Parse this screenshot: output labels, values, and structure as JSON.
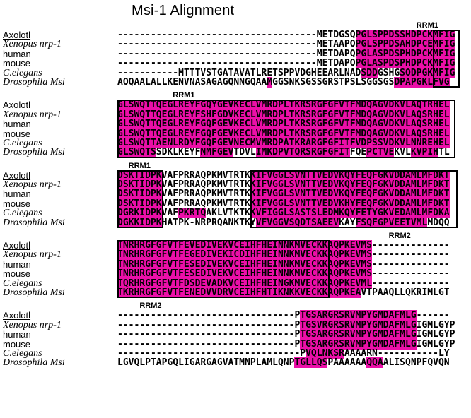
{
  "title": "Msi-1 Alignment",
  "colors": {
    "highlight": "#EC0FA8",
    "box_border": "#000000"
  },
  "layout_labels": {
    "rrm1": "RRM1",
    "rrm2": "RRM2"
  },
  "blocks": [
    {
      "top_labels": [
        {
          "text": "RRM1",
          "col": 54
        }
      ],
      "boxes": [
        {
          "col_start": 57,
          "col_end": 61.8,
          "row_start": 0,
          "row_end": 6
        }
      ],
      "rows": [
        {
          "species": "Axolotl",
          "style": "sans underline",
          "seq": "------------------------------------METDGSQPGLSPPDSSHDPCKMFIG",
          "hl": [
            [
              43,
              61
            ]
          ]
        },
        {
          "species": "Xenopus nrp-1",
          "style": "serif-italic",
          "seq": "------------------------------------METAAPQPGLSPPDSAHDPCEMFIG",
          "hl": [
            [
              43,
              61
            ]
          ]
        },
        {
          "species": "human",
          "style": "sans",
          "seq": "------------------------------------METDAPQPGLASPDSPHDPCKMFIG",
          "hl": [
            [
              43,
              61
            ]
          ]
        },
        {
          "species": "mouse",
          "style": "sans",
          "seq": "------------------------------------METDAPQPGLASPDSPHDPCKMFIG",
          "hl": [
            [
              43,
              61
            ]
          ]
        },
        {
          "species": "C.elegans",
          "style": "serif-italic",
          "seq": "-----------MTTTVSTGATAVATLRETSPPVDGHEEARLNADSDDGSHGSQDPGKMFIG",
          "hl": [
            [
              44,
              47
            ],
            [
              51,
              61
            ]
          ]
        },
        {
          "species": "Drosophila Msi",
          "style": "serif-italic",
          "seq": "AQQAALALLKENVNASAGAGQNNGQAAMGGSNKSGSSGRSTPSLSGGSGSDPAPGKLFVG",
          "hl": [
            [
              27,
              28
            ],
            [
              50,
              60
            ]
          ]
        }
      ]
    },
    {
      "top_labels": [
        {
          "text": "RRM1",
          "col": 10
        }
      ],
      "boxes": [
        {
          "col_start": 0,
          "col_end": 61,
          "row_start": 0,
          "row_end": 6
        }
      ],
      "rows": [
        {
          "species": "Axolotl",
          "style": "sans underline",
          "seq": "GLSWQTTQEGLREYFGQYGEVKECLVMRDPLTKRSRGFGFVTFMDQAGVDKVLAQTRHEL",
          "hl": [
            [
              0,
              60
            ]
          ]
        },
        {
          "species": "Xenopus nrp-1",
          "style": "serif-italic",
          "seq": "GLSWQTTQEGLREYFSHFGDVKECLVMRDPLTKRSRGFGFVTFMDQAGVDKVLAQSRHEL",
          "hl": [
            [
              0,
              60
            ]
          ]
        },
        {
          "species": "human",
          "style": "sans",
          "seq": "GLSWQTTQEGLREYFGQFGEVKECLVMRDPLTKRSRGFGFVTFMDQAGVDKVLAQSRHEL",
          "hl": [
            [
              0,
              60
            ]
          ]
        },
        {
          "species": "mouse",
          "style": "sans",
          "seq": "GLSWQTTQEGLREYFGQFGEVKECLVMRDPLTKRSRGFGFVTFMDQAGVDKVLAQSRHEL",
          "hl": [
            [
              0,
              60
            ]
          ]
        },
        {
          "species": "C.elegans",
          "style": "serif-italic",
          "seq": "GLSWQTTAENLRDYFGQFGEVNECMVMRDPATKRARGFGFITFVDPSSVDKVLNNREHEL",
          "hl": [
            [
              0,
              60
            ]
          ]
        },
        {
          "species": "Drosophila Msi",
          "style": "serif-italic",
          "seq": "GLSWQTSSDKLKEYFNMFGEVTDVLIMKDPVTQRSRGFGFITFQEPCTVEKVLKVPIHTL",
          "hl": [
            [
              0,
              7
            ],
            [
              15,
              21
            ],
            [
              25,
              42
            ],
            [
              45,
              50
            ],
            [
              53,
              58
            ]
          ]
        }
      ]
    },
    {
      "top_labels": [
        {
          "text": "RRM1",
          "col": 2
        }
      ],
      "boxes": [
        {
          "col_start": 0,
          "col_end": 8.3,
          "row_start": 0,
          "row_end": 6
        },
        {
          "col_start": 24,
          "col_end": 61.5,
          "row_start": 0,
          "row_end": 6
        }
      ],
      "rows": [
        {
          "species": "Axolotl",
          "style": "sans underline",
          "seq": "DSKTIDPKVAFPRRAQPKMVTRTKKIFVGGLSVNTTVEDVKQYFEQFGKVDDAMLMFDKT",
          "hl": [
            [
              0,
              8
            ],
            [
              24,
              60
            ]
          ]
        },
        {
          "species": "Xenopus nrp-1",
          "style": "serif-italic",
          "seq": "DSKTIDPKVAFPRRAQPKMVTRTKKIFVGGLSVNTTVEDVKQYFEQFGKVDDAMLMFDKT",
          "hl": [
            [
              0,
              8
            ],
            [
              24,
              60
            ]
          ]
        },
        {
          "species": "human",
          "style": "sans",
          "seq": "DSKTIDPKVAFPRRAQPKMVTRTKKIFVGGLSVNTTVEDVKQYFEQFGKVDDAMLMFDKT",
          "hl": [
            [
              0,
              8
            ],
            [
              24,
              60
            ]
          ]
        },
        {
          "species": "mouse",
          "style": "sans",
          "seq": "DSKTIDPKVAFPRRAQPKMVTRTKKIFVGGLSVNTTVEDVKHYFEQFGKVDDAMLMFDKT",
          "hl": [
            [
              0,
              8
            ],
            [
              24,
              60
            ]
          ]
        },
        {
          "species": "C.elegans",
          "style": "serif-italic",
          "seq": "DGRKIDPKVAFPKRTQAKLVTKTKKVFIGGLSASTSLEDMKQYFETYGKVEDAMLMFDKA",
          "hl": [
            [
              0,
              8
            ],
            [
              11,
              16
            ],
            [
              24,
              60
            ]
          ]
        },
        {
          "species": "Drosophila Msi",
          "style": "serif-italic",
          "seq": "DGKKIDPKHATPK-NRPRQANKTKYVFVGGVSQDTSAEEVKAYFSQFGPVEETVMLMDQQ",
          "hl": [
            [
              0,
              8
            ],
            [
              25,
              40
            ],
            [
              43,
              56
            ]
          ]
        }
      ]
    },
    {
      "top_labels": [
        {
          "text": "RRM2",
          "col": 49
        }
      ],
      "boxes": [
        {
          "col_start": 0,
          "col_end": 38.3,
          "row_start": 0,
          "row_end": 6
        }
      ],
      "rows": [
        {
          "species": "Axolotl",
          "style": "sans underline",
          "seq": "TNRHRGFGFVTFEVEDIVEKVCEIHFHEINNKMVECKKAQPKEVMS--------------",
          "hl": [
            [
              0,
              46
            ]
          ]
        },
        {
          "species": "Xenopus nrp-1",
          "style": "serif-italic",
          "seq": "TNRHRGFGFVTFEGEDIVEKICDIHFHEINNKMVECKKAQPKEVMS--------------",
          "hl": [
            [
              0,
              46
            ]
          ]
        },
        {
          "species": "human",
          "style": "sans",
          "seq": "TNRHRGFGFVTFESEDIVEKVCEIHFHEINNKMVECKKAQPKEVMS--------------",
          "hl": [
            [
              0,
              46
            ]
          ]
        },
        {
          "species": "mouse",
          "style": "sans",
          "seq": "TNRHRGFGFVTFESEDIVEKVCEIHFHEINNKMVECKKAQPKEVMS--------------",
          "hl": [
            [
              0,
              46
            ]
          ]
        },
        {
          "species": "C.elegans",
          "style": "serif-italic",
          "seq": "TQRHRGFGFVTFDSDEVADKVCEIHFHEINGKMVECKKAQPKEVML--------------",
          "hl": [
            [
              0,
              46
            ]
          ]
        },
        {
          "species": "Drosophila Msi",
          "style": "serif-italic",
          "seq": "TKRHRGFGFVTFENEDVVDRVCEIHFHTIKNKKVECKKAQPKEAVTPAAQLLQKRIMLGT",
          "hl": [
            [
              0,
              44
            ]
          ]
        }
      ]
    },
    {
      "top_labels": [
        {
          "text": "RRM2",
          "col": 4
        }
      ],
      "boxes": [],
      "rows": [
        {
          "species": "Axolotl",
          "style": "sans underline",
          "seq": "--------------------------------PTGSARGRSRVMPYGMDAFMLG------",
          "hl": [
            [
              33,
              54
            ]
          ]
        },
        {
          "species": "Xenopus nrp-1",
          "style": "serif-italic",
          "seq": "--------------------------------PTGSVRGRSRVMPYGMDAFMLGIGMLGYP",
          "hl": [
            [
              33,
              54
            ]
          ]
        },
        {
          "species": "human",
          "style": "sans",
          "seq": "--------------------------------PTGSARGRSRVMPYGMDAFMLGIGMLGYP",
          "hl": [
            [
              33,
              54
            ]
          ]
        },
        {
          "species": "mouse",
          "style": "sans",
          "seq": "--------------------------------PTGSARGRSRVMPYGMDAFMLGIGMLGYP",
          "hl": [
            [
              33,
              54
            ]
          ]
        },
        {
          "species": "C.elegans",
          "style": "serif-italic",
          "seq": "---------------------------------PVQLNKSRAAAARN-----------LY",
          "hl": [
            [
              34,
              41
            ]
          ]
        },
        {
          "species": "Drosophila Msi",
          "style": "serif-italic",
          "seq": "LGVQLPTAPGQLIGARGAGVATMNPLAMLQNPTGLLQSPAAAAAAQQAALISQNPFQVQN",
          "hl": [
            [
              32,
              38
            ],
            [
              45,
              48
            ]
          ]
        }
      ]
    }
  ]
}
